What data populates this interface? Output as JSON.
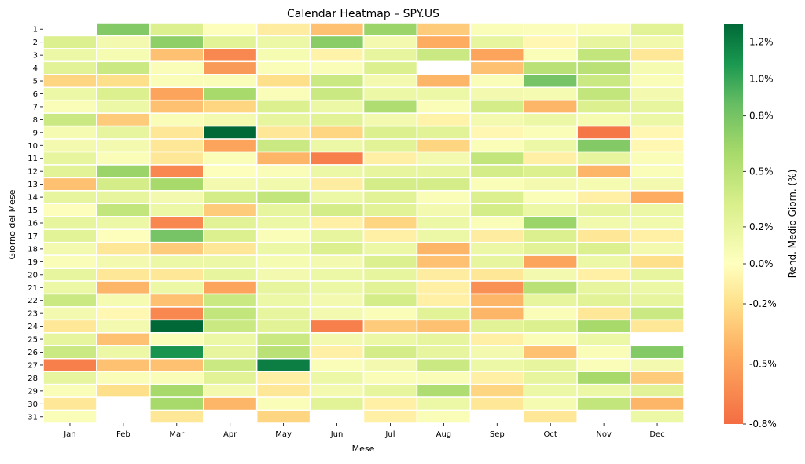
{
  "chart_data": {
    "type": "heatmap",
    "title": "Calendar Heatmap – SPY.US",
    "xlabel": "Mese",
    "ylabel": "Giorno del Mese",
    "colorbar_label": "Rend. Medio Giorn. (%)",
    "x_categories": [
      "Jan",
      "Feb",
      "Mar",
      "Apr",
      "May",
      "Jun",
      "Jul",
      "Aug",
      "Sep",
      "Oct",
      "Nov",
      "Dec"
    ],
    "y_categories": [
      "1",
      "2",
      "3",
      "4",
      "5",
      "6",
      "7",
      "8",
      "9",
      "10",
      "11",
      "12",
      "13",
      "14",
      "15",
      "16",
      "17",
      "18",
      "19",
      "20",
      "21",
      "22",
      "23",
      "24",
      "25",
      "26",
      "27",
      "28",
      "29",
      "30",
      "31"
    ],
    "colorbar_ticks": [
      {
        "value": 1.2,
        "label": "1.2%"
      },
      {
        "value": 1.0,
        "label": "1.0%"
      },
      {
        "value": 0.8,
        "label": "0.8%"
      },
      {
        "value": 0.5,
        "label": "0.5%"
      },
      {
        "value": 0.2,
        "label": "0.2%"
      },
      {
        "value": 0.0,
        "label": "0.0%"
      },
      {
        "value": -0.2,
        "label": "-0.2%"
      },
      {
        "value": -0.5,
        "label": "-0.5%"
      },
      {
        "value": -0.8,
        "label": "-0.8%"
      }
    ],
    "vmin": -0.8,
    "vmax": 1.3,
    "values": [
      [
        null,
        0.75,
        0.3,
        0.02,
        -0.12,
        -0.35,
        0.65,
        -0.3,
        0.05,
        0.03,
        0.05,
        0.25
      ],
      [
        0.3,
        0.1,
        0.7,
        0.25,
        0.15,
        0.72,
        0.1,
        -0.45,
        0.2,
        -0.05,
        0.2,
        0.12
      ],
      [
        0.15,
        0.08,
        -0.35,
        -0.65,
        0.08,
        -0.08,
        0.2,
        0.4,
        -0.5,
        0.05,
        0.45,
        -0.15
      ],
      [
        0.25,
        0.4,
        0.05,
        -0.55,
        0.05,
        0.05,
        0.3,
        null,
        -0.35,
        0.5,
        0.5,
        0.08
      ],
      [
        -0.25,
        -0.2,
        0.05,
        0.05,
        -0.2,
        0.4,
        0.1,
        -0.4,
        0.05,
        0.8,
        0.4,
        0.05
      ],
      [
        0.15,
        0.3,
        -0.5,
        0.6,
        0.05,
        0.4,
        0.15,
        0.15,
        0.1,
        0.08,
        0.45,
        0.1
      ],
      [
        0.05,
        0.15,
        -0.35,
        -0.25,
        0.3,
        0.15,
        0.55,
        0.05,
        0.35,
        -0.4,
        0.3,
        0.2
      ],
      [
        0.4,
        -0.3,
        0.05,
        0.1,
        0.2,
        0.25,
        0.1,
        -0.08,
        0.1,
        0.15,
        0.08,
        0.15
      ],
      [
        0.08,
        0.2,
        -0.15,
        1.3,
        -0.15,
        -0.25,
        0.3,
        0.25,
        -0.05,
        0.05,
        -0.75,
        -0.05
      ],
      [
        0.1,
        0.1,
        -0.15,
        -0.5,
        0.4,
        0.15,
        0.25,
        -0.25,
        0.05,
        0.15,
        0.75,
        -0.05
      ],
      [
        0.2,
        0.05,
        -0.15,
        0.05,
        -0.4,
        -0.7,
        -0.1,
        0.1,
        0.45,
        -0.1,
        0.2,
        0.05
      ],
      [
        0.25,
        0.65,
        -0.65,
        0.02,
        0.05,
        0.15,
        0.2,
        0.2,
        0.35,
        0.3,
        -0.4,
        0.05
      ],
      [
        -0.35,
        0.35,
        0.6,
        0.1,
        0.12,
        -0.12,
        0.35,
        0.35,
        0.05,
        0.1,
        0.08,
        0.1
      ],
      [
        0.2,
        0.2,
        0.1,
        0.35,
        0.45,
        0.15,
        0.25,
        0.05,
        0.3,
        0.05,
        -0.1,
        -0.45
      ],
      [
        0.02,
        0.45,
        0.15,
        -0.3,
        0.2,
        0.35,
        0.25,
        0.1,
        0.35,
        0.15,
        0.2,
        0.15
      ],
      [
        0.2,
        0.15,
        -0.65,
        0.25,
        0.15,
        -0.1,
        -0.25,
        0.15,
        0.05,
        0.65,
        0.12,
        0.12
      ],
      [
        0.25,
        0.02,
        0.8,
        0.3,
        0.05,
        0.2,
        -0.1,
        0.15,
        -0.12,
        0.3,
        -0.15,
        -0.1
      ],
      [
        0.1,
        -0.15,
        -0.3,
        -0.15,
        0.15,
        0.3,
        0.15,
        -0.4,
        0.15,
        0.25,
        0.3,
        0.1
      ],
      [
        0.05,
        0.1,
        0.15,
        0.15,
        0.08,
        0.1,
        0.3,
        -0.35,
        0.2,
        -0.5,
        0.15,
        -0.2
      ],
      [
        0.2,
        -0.15,
        -0.15,
        0.2,
        0.1,
        0.15,
        0.2,
        -0.12,
        -0.15,
        0.1,
        -0.1,
        0.2
      ],
      [
        0.15,
        -0.4,
        0.15,
        -0.5,
        0.2,
        0.15,
        0.25,
        -0.1,
        -0.6,
        0.5,
        0.2,
        0.15
      ],
      [
        0.4,
        0.08,
        -0.35,
        0.4,
        0.15,
        0.1,
        0.35,
        -0.1,
        -0.4,
        0.2,
        0.25,
        0.2
      ],
      [
        0.1,
        -0.05,
        -0.65,
        0.45,
        0.2,
        0.1,
        0.05,
        0.25,
        -0.4,
        0.05,
        -0.15,
        0.4
      ],
      [
        -0.15,
        0.1,
        1.3,
        0.4,
        0.25,
        -0.7,
        -0.3,
        -0.35,
        0.25,
        0.3,
        0.6,
        -0.15
      ],
      [
        0.2,
        -0.35,
        0.05,
        0.15,
        0.4,
        0.1,
        0.15,
        0.2,
        -0.1,
        0.05,
        0.15,
        null
      ],
      [
        0.4,
        0.15,
        1.1,
        0.2,
        0.5,
        -0.1,
        0.35,
        0.2,
        0.1,
        -0.35,
        0.05,
        0.75
      ],
      [
        -0.7,
        -0.35,
        -0.35,
        0.4,
        1.2,
        0.05,
        0.1,
        0.4,
        0.15,
        0.2,
        0.05,
        0.1
      ],
      [
        0.2,
        0.05,
        0.05,
        0.25,
        -0.1,
        0.15,
        0.05,
        0.05,
        -0.1,
        0.2,
        0.6,
        -0.3
      ],
      [
        0.05,
        -0.2,
        0.6,
        0.1,
        -0.15,
        0.1,
        0.2,
        0.55,
        -0.25,
        0.15,
        0.15,
        0.25
      ],
      [
        -0.15,
        null,
        0.6,
        -0.4,
        0.05,
        0.25,
        -0.1,
        0.15,
        -0.15,
        0.08,
        0.45,
        -0.4
      ],
      [
        0.05,
        null,
        -0.15,
        null,
        -0.25,
        null,
        -0.1,
        0.05,
        null,
        -0.15,
        null,
        0.15
      ]
    ]
  }
}
